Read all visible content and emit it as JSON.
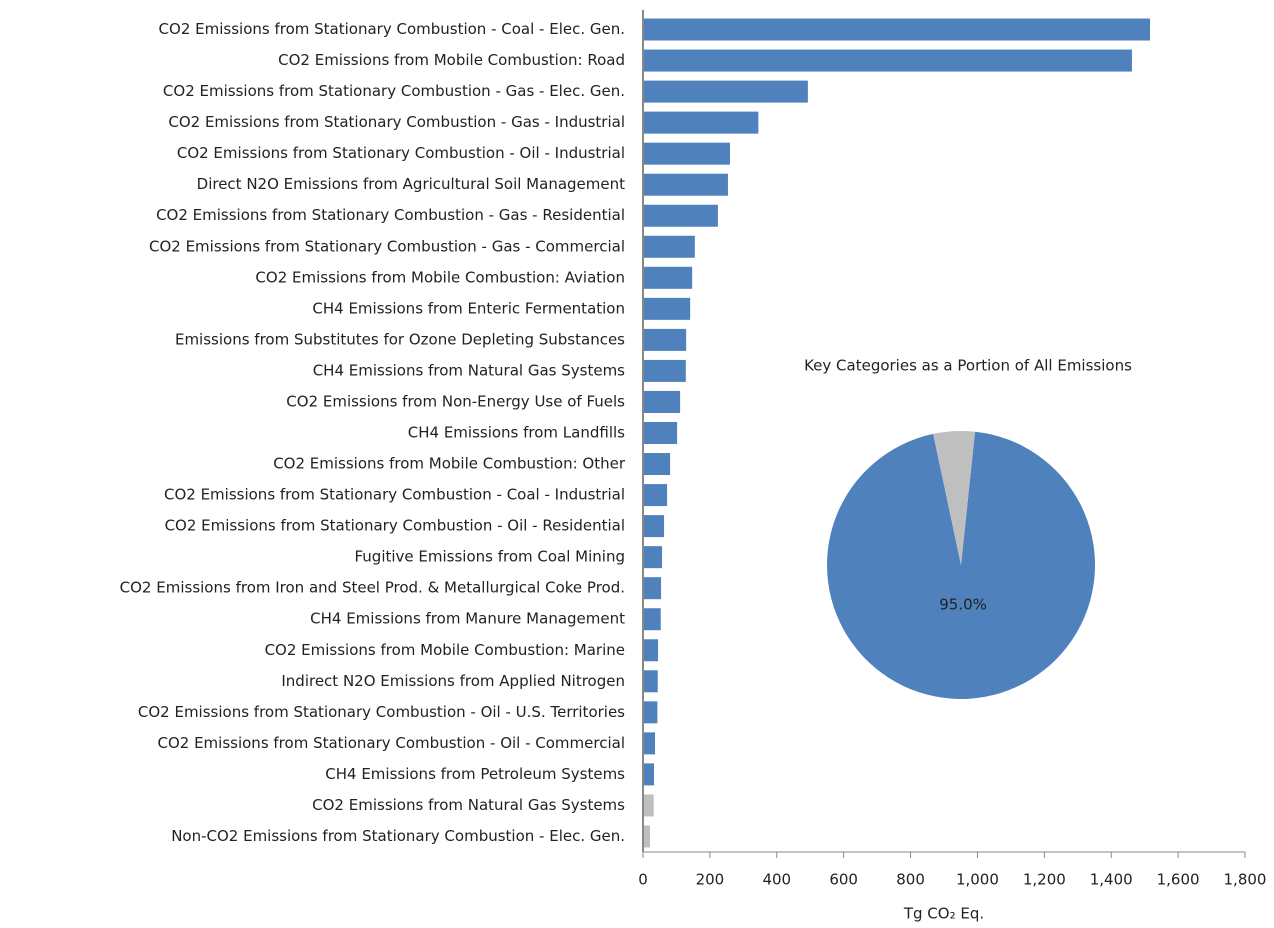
{
  "chart_data": [
    {
      "type": "barh",
      "categories": [
        "CO2 Emissions from Stationary Combustion - Coal - Elec. Gen.",
        "CO2 Emissions from Mobile Combustion: Road",
        "CO2 Emissions from Stationary Combustion - Gas - Elec. Gen.",
        "CO2 Emissions from Stationary Combustion - Gas - Industrial",
        "CO2 Emissions from Stationary Combustion - Oil - Industrial",
        "Direct N2O Emissions from Agricultural Soil Management",
        "CO2 Emissions from Stationary Combustion - Gas - Residential",
        "CO2 Emissions from Stationary Combustion - Gas - Commercial",
        "CO2 Emissions from Mobile Combustion: Aviation",
        "CH4 Emissions from Enteric Fermentation",
        "Emissions from Substitutes for Ozone Depleting Substances",
        "CH4 Emissions from Natural Gas Systems",
        "CO2 Emissions from Non-Energy Use of Fuels",
        "CH4 Emissions from Landfills",
        "CO2 Emissions from Mobile Combustion: Other",
        "CO2 Emissions from Stationary Combustion - Coal - Industrial",
        "CO2 Emissions from Stationary Combustion - Oil - Residential",
        "Fugitive Emissions from Coal Mining",
        "CO2 Emissions from Iron and Steel Prod. & Metallurgical Coke Prod.",
        "CH4 Emissions from Manure Management",
        "CO2 Emissions from Mobile Combustion: Marine",
        "Indirect N2O Emissions from Applied Nitrogen",
        "CO2 Emissions from Stationary Combustion - Oil - U.S. Territories",
        "CO2 Emissions from Stationary Combustion - Oil - Commercial",
        "CH4 Emissions from Petroleum Systems",
        "CO2 Emissions from Natural Gas Systems",
        "Non-CO2 Emissions from Stationary Combustion - Elec. Gen."
      ],
      "values": [
        1516,
        1462,
        493,
        345,
        260,
        254,
        224,
        155,
        147,
        141,
        129,
        128,
        111,
        102,
        81,
        72,
        63,
        57,
        54,
        53,
        45,
        44,
        43,
        36,
        33,
        32,
        21
      ],
      "colors": [
        "#4f81bd",
        "#4f81bd",
        "#4f81bd",
        "#4f81bd",
        "#4f81bd",
        "#4f81bd",
        "#4f81bd",
        "#4f81bd",
        "#4f81bd",
        "#4f81bd",
        "#4f81bd",
        "#4f81bd",
        "#4f81bd",
        "#4f81bd",
        "#4f81bd",
        "#4f81bd",
        "#4f81bd",
        "#4f81bd",
        "#4f81bd",
        "#4f81bd",
        "#4f81bd",
        "#4f81bd",
        "#4f81bd",
        "#4f81bd",
        "#4f81bd",
        "#bfbfbf",
        "#bfbfbf"
      ],
      "xlim": [
        0,
        1800
      ],
      "xticks": [
        0,
        200,
        400,
        600,
        800,
        {
          "value": 1000,
          "label": "1,000"
        },
        {
          "value": 1200,
          "label": "1,200"
        },
        {
          "value": 1400,
          "label": "1,400"
        },
        {
          "value": 1600,
          "label": "1,600"
        },
        {
          "value": 1800,
          "label": "1,800"
        }
      ],
      "xlabel": "Tg CO₂ Eq."
    },
    {
      "type": "pie",
      "title": "Key Categories as a Portion of All Emissions",
      "values": [
        95.0,
        5.0
      ],
      "value_labels": [
        "95.0%",
        null
      ],
      "colors": [
        "#4f81bd",
        "#bfbfbf"
      ]
    }
  ]
}
